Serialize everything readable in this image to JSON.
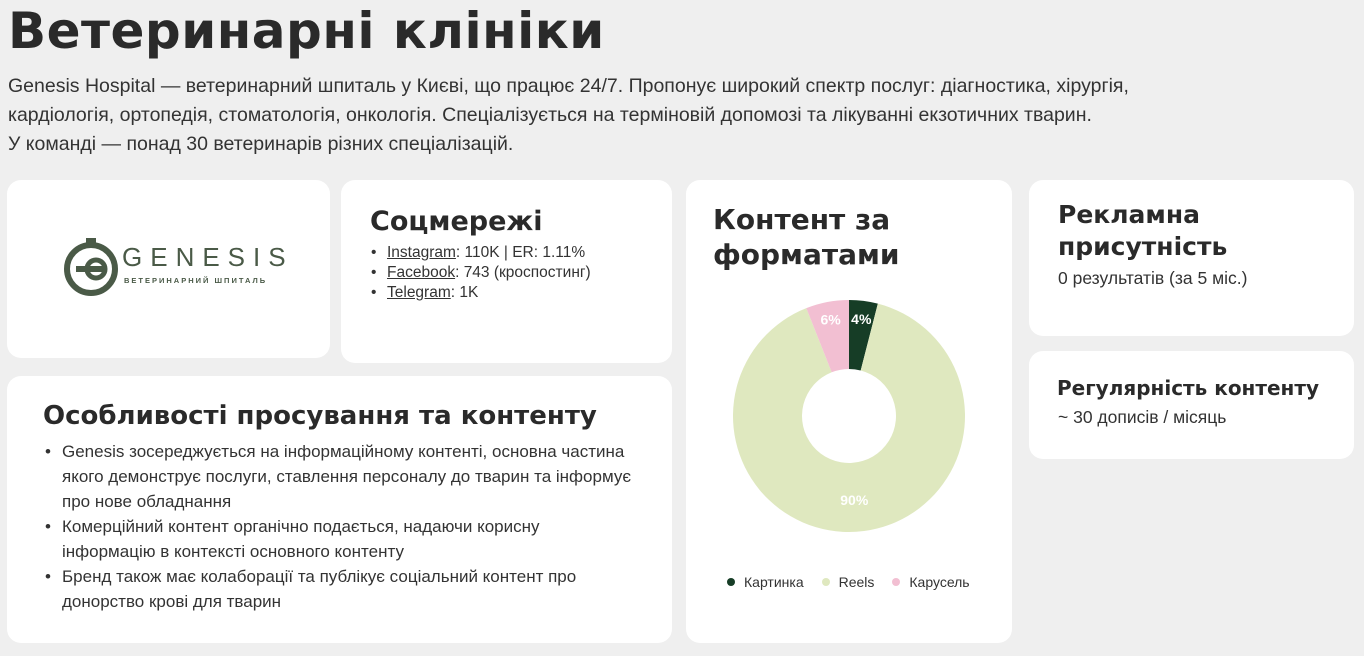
{
  "page": {
    "title": "Ветеринарні клініки",
    "intro_lines": [
      "Genesis Hospital — ветеринарний шпиталь у Києві, що працює 24/7. Пропонує широкий спектр послуг: діагностика, хірургія,",
      "кардіологія, ортопедія, стоматологія, онкологія. Спеціалізується на терміновій допомозі та лікуванні екзотичних тварин.",
      "У команді — понад 30 ветеринарів різних спеціалізацій."
    ]
  },
  "logo": {
    "text": "GENESIS",
    "subtitle": "ВЕТЕРИНАРНИЙ ШПИТАЛЬ",
    "color": "#4a5a47"
  },
  "social": {
    "title": "Соцмережі",
    "items": [
      {
        "link": "Instagram",
        "value": ": 110K | ER: 1.11%"
      },
      {
        "link": "Facebook",
        "value": ": 743 (кроспостинг)"
      },
      {
        "link": "Telegram",
        "value": ": 1K"
      }
    ]
  },
  "features": {
    "title": "Особливості просування та контенту",
    "items": [
      "Genesis зосереджується на інформаційному контенті, основна частина якого демонструє послуги, ставлення персоналу до тварин та інформує про нове обладнання",
      "Комерційний контент органічно подається, надаючи корисну інформацію в контексті основного контенту",
      "Бренд також має колаборації та публікує соціальний контент про донорство крові для тварин"
    ]
  },
  "chart_data": {
    "type": "pie",
    "donut": true,
    "title": "Контент за форматами",
    "categories": [
      "Картинка",
      "Reels",
      "Карусель"
    ],
    "values": [
      4,
      90,
      6
    ],
    "labels": [
      "4%",
      "90%",
      "6%"
    ],
    "colors": [
      "#163d26",
      "#dfe8bf",
      "#f2bfd2"
    ],
    "label_colors": [
      "#ffffff",
      "#ffffff",
      "#ffffff"
    ],
    "legend_position": "bottom"
  },
  "ads": {
    "title_line1": "Рекламна",
    "title_line2": "присутність",
    "value": "0 результатів (за 5 міс.)"
  },
  "regularity": {
    "title": "Регулярність контенту",
    "value": "~ 30 дописів / місяць"
  }
}
